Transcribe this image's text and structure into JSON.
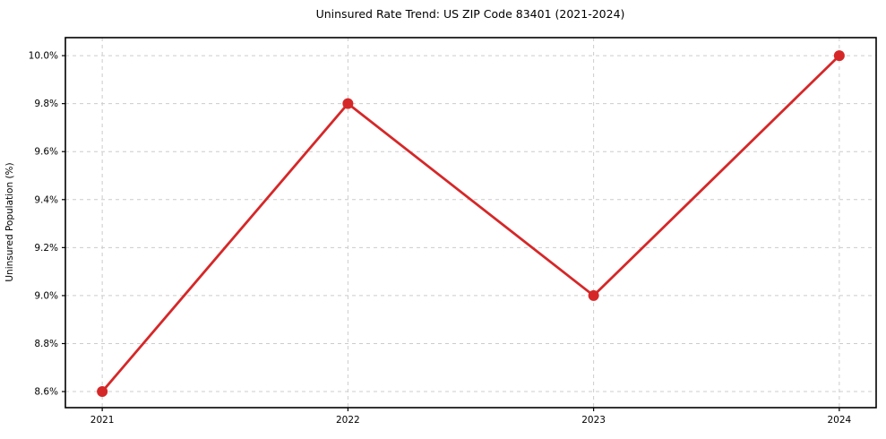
{
  "figure": {
    "title": "Uninsured Rate Trend: US ZIP Code 83401 (2021-2024)"
  },
  "chart_data": {
    "type": "line",
    "title": "Uninsured Rate Trend: US ZIP Code 83401 (2021-2024)",
    "xlabel": "",
    "ylabel": "Uninsured Population (%)",
    "x": [
      2021,
      2022,
      2023,
      2024
    ],
    "values": [
      8.6,
      9.8,
      9.0,
      10.0
    ],
    "categories": [
      "2021",
      "2022",
      "2023",
      "2024"
    ],
    "xticks": [
      2021,
      2022,
      2023,
      2024
    ],
    "xtick_labels": [
      "2021",
      "2022",
      "2023",
      "2024"
    ],
    "yticks": [
      8.6,
      8.8,
      9.0,
      9.2,
      9.4,
      9.6,
      9.8,
      10.0
    ],
    "ytick_labels": [
      "8.6%",
      "8.8%",
      "9.0%",
      "9.2%",
      "9.4%",
      "9.6%",
      "9.8%",
      "10.0%"
    ],
    "xlim": [
      2020.85,
      2024.15
    ],
    "ylim": [
      8.533,
      10.075
    ],
    "grid": true,
    "legend": "none",
    "marker": "circle",
    "line_color": "#d62728",
    "grid_color": "#cccccc",
    "spine_color": "#000000",
    "background_color": "#ffffff"
  }
}
